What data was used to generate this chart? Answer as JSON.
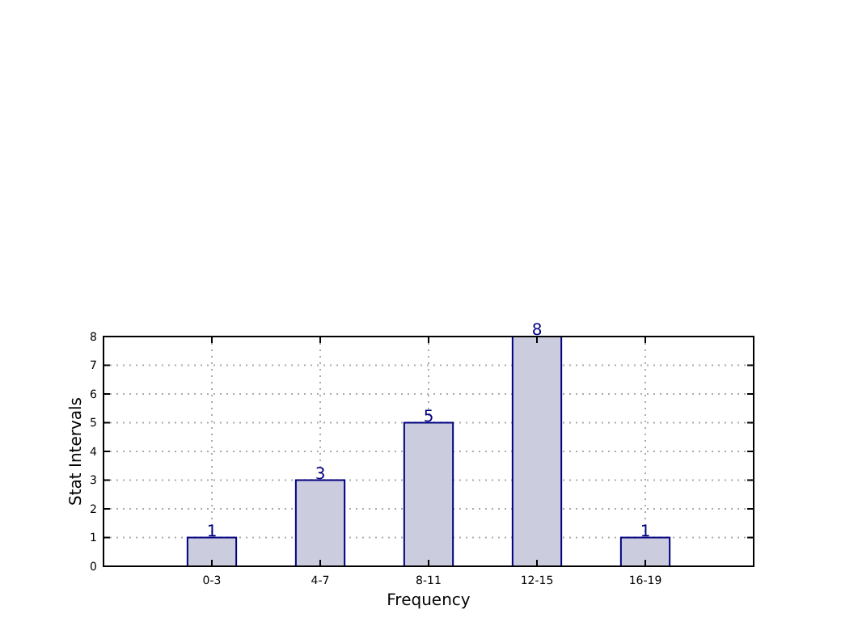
{
  "chart_data": {
    "type": "bar",
    "xlabel": "Frequency",
    "ylabel": "Stat Intervals",
    "categories": [
      "0-3",
      "4-7",
      "8-11",
      "12-15",
      "16-19"
    ],
    "values": [
      1,
      3,
      5,
      8,
      1
    ],
    "color": "#ccccdf",
    "ylim": [
      0,
      8
    ],
    "yticks": [
      0,
      1,
      2,
      3,
      4,
      5,
      6,
      7,
      8
    ],
    "grid": true,
    "data_labels": true
  }
}
